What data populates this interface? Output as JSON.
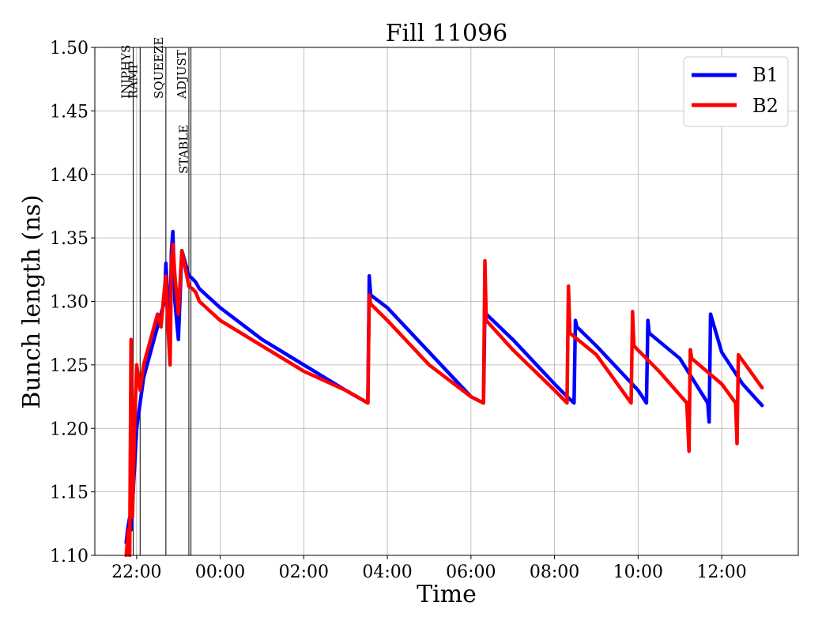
{
  "chart_data": {
    "type": "line",
    "title": "Fill 11096",
    "xlabel": "Time",
    "ylabel": "Bunch length (ns)",
    "xlim": [
      "21:00",
      "13:50"
    ],
    "ylim": [
      1.1,
      1.5
    ],
    "x_tick_labels": [
      "22:00",
      "00:00",
      "02:00",
      "04:00",
      "06:00",
      "08:00",
      "10:00",
      "12:00"
    ],
    "y_tick_labels": [
      "1.10",
      "1.15",
      "1.20",
      "1.25",
      "1.30",
      "1.35",
      "1.40",
      "1.45",
      "1.50"
    ],
    "grid": true,
    "legend_position": "top-right",
    "phases": [
      {
        "label": "INJPHYS",
        "time": "21:55"
      },
      {
        "label": "RAMP",
        "time": "22:05"
      },
      {
        "label": "SQUEEZE",
        "time": "22:42"
      },
      {
        "label": "ADJUST",
        "time": "23:15"
      },
      {
        "label": "STABLE",
        "time": "23:18"
      }
    ],
    "series": [
      {
        "name": "B1",
        "color": "#0000ff",
        "x": [
          "21:45",
          "21:47",
          "21:50",
          "21:52",
          "21:55",
          "21:58",
          "22:00",
          "22:05",
          "22:10",
          "22:15",
          "22:20",
          "22:25",
          "22:30",
          "22:35",
          "22:40",
          "22:42",
          "22:45",
          "22:48",
          "22:50",
          "22:52",
          "22:55",
          "23:00",
          "23:05",
          "23:15",
          "23:20",
          "23:25",
          "23:30",
          "23:40",
          "00:00",
          "01:00",
          "02:00",
          "03:00",
          "03:32",
          "03:34",
          "03:36",
          "04:00",
          "05:00",
          "06:00",
          "06:18",
          "06:20",
          "06:22",
          "07:00",
          "08:00",
          "08:18",
          "08:28",
          "08:30",
          "08:32",
          "09:00",
          "10:00",
          "10:12",
          "10:14",
          "10:16",
          "11:00",
          "11:40",
          "11:42",
          "11:44",
          "12:00",
          "12:30",
          "12:58"
        ],
        "y": [
          1.11,
          1.12,
          1.13,
          1.12,
          1.15,
          1.18,
          1.2,
          1.22,
          1.24,
          1.25,
          1.26,
          1.27,
          1.28,
          1.29,
          1.3,
          1.33,
          1.3,
          1.28,
          1.34,
          1.355,
          1.3,
          1.27,
          1.34,
          1.32,
          1.318,
          1.315,
          1.31,
          1.305,
          1.295,
          1.27,
          1.25,
          1.23,
          1.22,
          1.32,
          1.305,
          1.295,
          1.26,
          1.225,
          1.22,
          1.295,
          1.29,
          1.27,
          1.235,
          1.225,
          1.22,
          1.285,
          1.28,
          1.265,
          1.23,
          1.22,
          1.285,
          1.275,
          1.255,
          1.22,
          1.205,
          1.29,
          1.26,
          1.235,
          1.218
        ]
      },
      {
        "name": "B2",
        "color": "#ff0000",
        "x": [
          "21:45",
          "21:48",
          "21:50",
          "21:52",
          "21:54",
          "21:57",
          "22:00",
          "22:05",
          "22:10",
          "22:15",
          "22:20",
          "22:25",
          "22:30",
          "22:35",
          "22:40",
          "22:42",
          "22:45",
          "22:48",
          "22:50",
          "22:52",
          "22:55",
          "23:00",
          "23:05",
          "23:15",
          "23:20",
          "23:25",
          "23:30",
          "23:40",
          "00:00",
          "01:00",
          "02:00",
          "03:00",
          "03:32",
          "03:34",
          "03:36",
          "04:00",
          "05:00",
          "06:00",
          "06:18",
          "06:20",
          "06:22",
          "07:00",
          "08:00",
          "08:18",
          "08:20",
          "08:22",
          "09:00",
          "09:50",
          "09:52",
          "09:54",
          "10:30",
          "11:10",
          "11:13",
          "11:15",
          "11:17",
          "12:00",
          "12:20",
          "12:22",
          "12:24",
          "12:58"
        ],
        "y": [
          1.1,
          1.12,
          1.1,
          1.27,
          1.13,
          1.2,
          1.25,
          1.23,
          1.25,
          1.26,
          1.27,
          1.28,
          1.29,
          1.28,
          1.31,
          1.32,
          1.28,
          1.25,
          1.33,
          1.345,
          1.32,
          1.29,
          1.34,
          1.312,
          1.31,
          1.307,
          1.3,
          1.295,
          1.285,
          1.265,
          1.245,
          1.23,
          1.22,
          1.305,
          1.298,
          1.285,
          1.25,
          1.225,
          1.22,
          1.332,
          1.285,
          1.262,
          1.23,
          1.22,
          1.312,
          1.275,
          1.258,
          1.22,
          1.292,
          1.265,
          1.245,
          1.22,
          1.182,
          1.262,
          1.255,
          1.235,
          1.22,
          1.188,
          1.258,
          1.232
        ]
      }
    ]
  }
}
